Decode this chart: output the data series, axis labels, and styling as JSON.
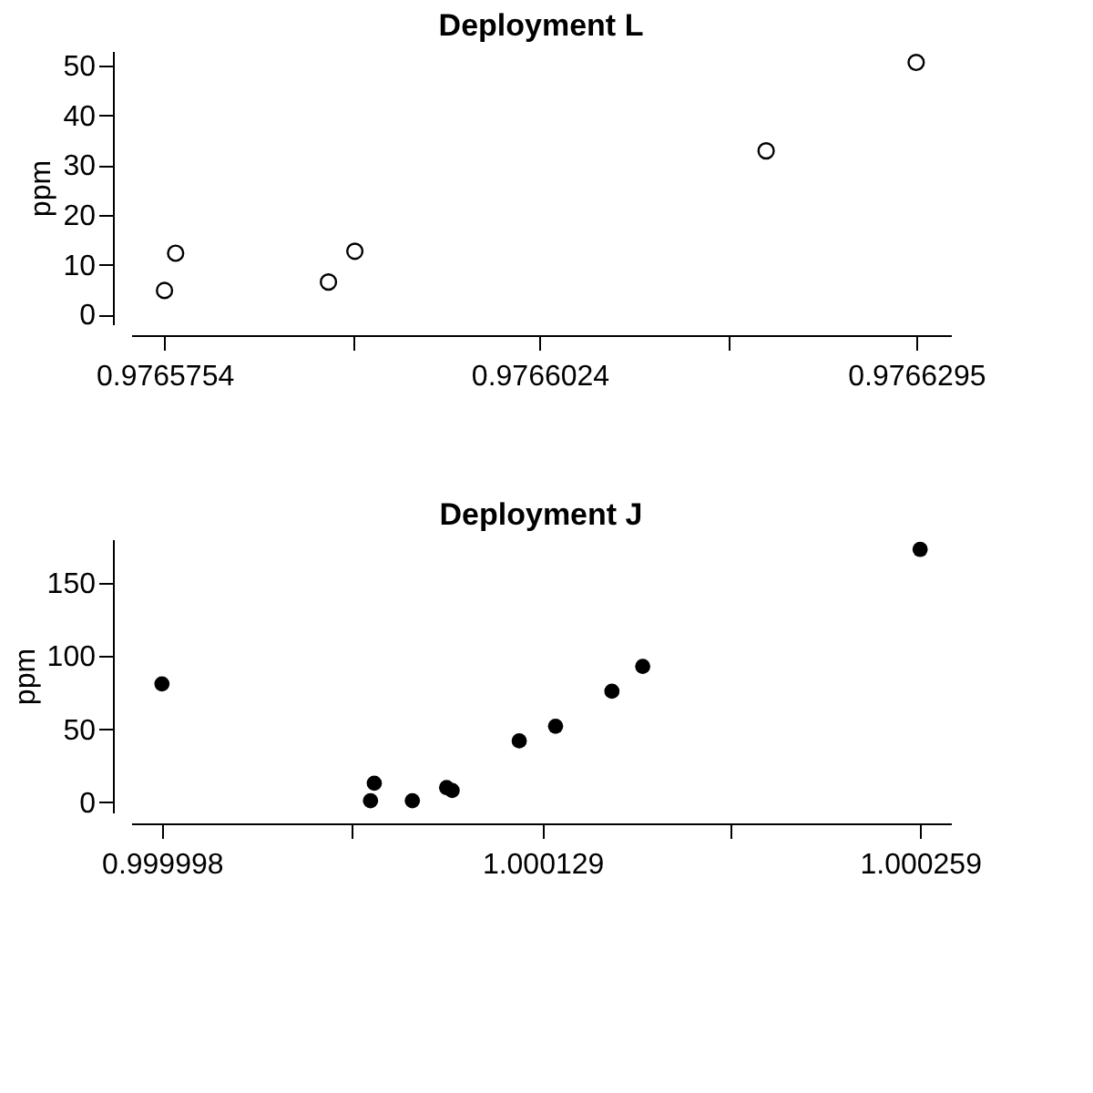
{
  "chart_data": [
    {
      "type": "scatter",
      "title": "Deployment L",
      "ylabel": "ppm",
      "marker": "circle",
      "grid": false,
      "x": [
        0.9765754,
        0.9765762,
        0.9765872,
        0.9765891,
        0.9766187,
        0.9766295
      ],
      "series": [
        {
          "color": "#000000",
          "values": [
            4.8,
            12.3,
            6.5,
            12.7,
            32.9,
            50.7
          ]
        }
      ],
      "xlim": [
        0.976573,
        0.976632
      ],
      "ylim": [
        -2,
        53
      ],
      "xticks": [
        0.9765754,
        {
          "value": 0.97658895,
          "label": null
        },
        0.9766024,
        {
          "value": 0.97661595,
          "label": null
        },
        0.9766295
      ],
      "yticks": [
        0,
        10,
        20,
        30,
        40,
        50
      ]
    },
    {
      "type": "scatter",
      "title": "Deployment J",
      "ylabel": "ppm",
      "marker": "circle",
      "grid": false,
      "x": [
        0.999998,
        1.0000698,
        1.0000711,
        1.0000842,
        1.000096,
        1.0000979,
        1.000121,
        1.0001335,
        1.0001529,
        1.0001635,
        1.000259
      ],
      "series": [
        {
          "color": "#000000",
          "values": [
            81,
            1,
            13,
            1,
            10,
            8,
            42,
            52,
            76,
            93,
            173
          ]
        }
      ],
      "xlim": [
        0.9999874,
        1.0002696
      ],
      "ylim": [
        -7,
        180
      ],
      "xticks": [
        0.999998,
        {
          "value": 1.0000635,
          "label": null
        },
        1.000129,
        {
          "value": 1.000194,
          "label": null
        },
        1.000259
      ],
      "yticks": [
        0,
        50,
        100,
        150
      ]
    }
  ]
}
